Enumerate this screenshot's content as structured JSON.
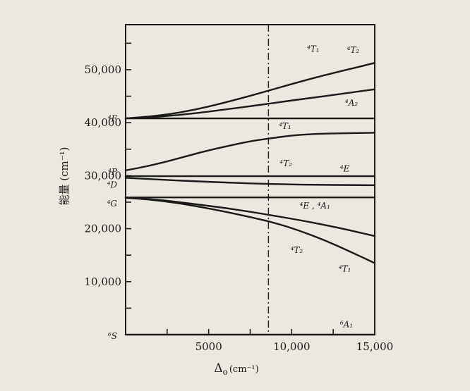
{
  "chart_data": {
    "type": "line",
    "xlabel": "Δ",
    "xlabel_sub": "o",
    "xlabel_unit": "(cm⁻¹)",
    "ylabel": "能量 (cm⁻¹)",
    "xlim": [
      0,
      15000
    ],
    "ylim": [
      0,
      58500
    ],
    "xticks": [
      0,
      2500,
      5000,
      7500,
      10000,
      12500,
      15000
    ],
    "xtick_labels": [
      "",
      "",
      "5000",
      "",
      "10,000",
      "",
      "15,000"
    ],
    "yticks": [
      5000,
      10000,
      15000,
      20000,
      25000,
      30000,
      35000,
      40000,
      45000,
      50000,
      55000
    ],
    "ytick_labels": [
      "",
      "10,000",
      "",
      "20,000",
      "",
      "30,000",
      "",
      "40,000",
      "",
      "50,000",
      ""
    ],
    "vline_x": 8600,
    "grid": false,
    "colors": {
      "background": "#ece8e0",
      "ink": "#1a1a1a"
    },
    "free_ion_labels": [
      {
        "term": "⁴F",
        "y": 41000
      },
      {
        "term": "⁴P",
        "y": 31000
      },
      {
        "term": "⁴D",
        "y": 28500
      },
      {
        "term": "⁴G",
        "y": 25000
      },
      {
        "term": "⁶S",
        "y": 0
      }
    ],
    "series": [
      {
        "name": "⁴T₂",
        "x": [
          0,
          2000,
          4000,
          6000,
          8000,
          10000,
          12000,
          14000,
          15000
        ],
        "y": [
          40800,
          41300,
          42300,
          43800,
          45500,
          47300,
          49000,
          50500,
          51300
        ]
      },
      {
        "name": "⁴T₁",
        "x": [
          0,
          2000,
          4000,
          6000,
          8000,
          10000,
          12000,
          14000,
          15000
        ],
        "y": [
          40800,
          41100,
          41700,
          42500,
          43300,
          44200,
          45000,
          45900,
          46300
        ]
      },
      {
        "name": "⁴A₂",
        "x": [
          0,
          5000,
          10000,
          15000
        ],
        "y": [
          40800,
          40800,
          40800,
          40800
        ]
      },
      {
        "name": "⁴T₁",
        "x": [
          0,
          1500,
          3000,
          4500,
          6000,
          7500,
          8600,
          10000,
          11500,
          13000,
          15000
        ],
        "y": [
          31000,
          31900,
          33100,
          34400,
          35500,
          36500,
          37000,
          37600,
          37900,
          38000,
          38100
        ]
      },
      {
        "name": "⁴E",
        "x": [
          0,
          5000,
          10000,
          15000
        ],
        "y": [
          29900,
          29900,
          29900,
          29900
        ]
      },
      {
        "name": "⁴T₂",
        "x": [
          0,
          5000,
          10000,
          15000
        ],
        "y": [
          29600,
          28800,
          28300,
          28200
        ]
      },
      {
        "name": "⁴E, ⁴A₁",
        "x": [
          0,
          5000,
          10000,
          15000
        ],
        "y": [
          25900,
          25900,
          25900,
          25900
        ]
      },
      {
        "name": "⁴T₂",
        "x": [
          0,
          1500,
          3000,
          4500,
          6000,
          7500,
          9000,
          10500,
          12000,
          13500,
          15000
        ],
        "y": [
          25800,
          25600,
          25100,
          24500,
          23900,
          23200,
          22400,
          21600,
          20700,
          19700,
          18600
        ]
      },
      {
        "name": "⁴T₁",
        "x": [
          0,
          1500,
          3000,
          4500,
          6000,
          7500,
          9000,
          10500,
          12000,
          13500,
          15000
        ],
        "y": [
          25800,
          25500,
          24900,
          24100,
          23200,
          22200,
          21100,
          19600,
          17800,
          15700,
          13500
        ]
      },
      {
        "name": "⁶A₁",
        "x": [
          0,
          15000
        ],
        "y": [
          0,
          0
        ]
      }
    ],
    "curve_labels": [
      {
        "text": "⁴T₁",
        "x": 11300,
        "y": 53400
      },
      {
        "text": "⁴T₂",
        "x": 13700,
        "y": 53200
      },
      {
        "text": "⁴A₂",
        "x": 13600,
        "y": 43200
      },
      {
        "text": "⁴T₁",
        "x": 9600,
        "y": 38800
      },
      {
        "text": "⁴T₂",
        "x": 9650,
        "y": 31800
      },
      {
        "text": "⁴E",
        "x": 13200,
        "y": 30800
      },
      {
        "text": "⁴E , ⁴A₁",
        "x": 11400,
        "y": 23800
      },
      {
        "text": "⁴T₂",
        "x": 10300,
        "y": 15400
      },
      {
        "text": "⁴T₁",
        "x": 13200,
        "y": 11900
      },
      {
        "text": "⁶A₁",
        "x": 13300,
        "y": 1400
      }
    ]
  }
}
